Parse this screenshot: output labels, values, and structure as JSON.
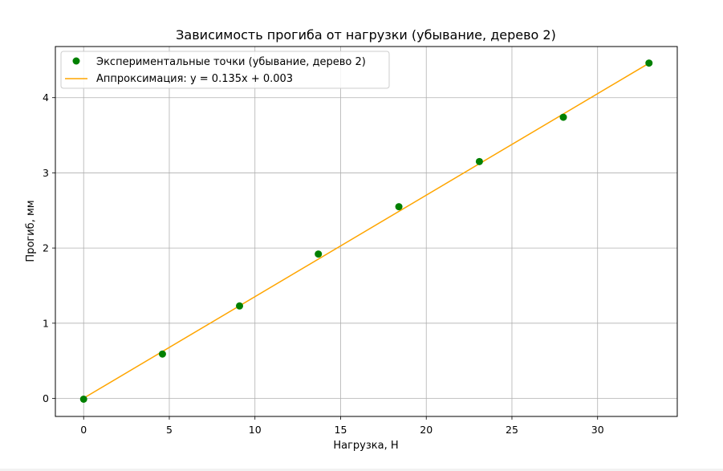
{
  "chart_data": {
    "type": "scatter",
    "title": "Зависимость прогиба от нагрузки (убывание, дерево 2)",
    "xlabel": "Нагрузка, Н",
    "ylabel": "Прогиб, мм",
    "xlim": [
      -1.65,
      34.65
    ],
    "ylim": [
      -0.24,
      4.68
    ],
    "x_ticks": [
      0,
      5,
      10,
      15,
      20,
      25,
      30
    ],
    "y_ticks": [
      0,
      1,
      2,
      3,
      4
    ],
    "grid": true,
    "legend_position": "top-left",
    "series": [
      {
        "name": "Экспериментальные точки (убывание, дерево 2)",
        "kind": "scatter",
        "color": "#008000",
        "x": [
          0,
          4.6,
          9.1,
          13.7,
          18.4,
          23.1,
          28.0,
          33.0
        ],
        "y": [
          -0.01,
          0.59,
          1.23,
          1.92,
          2.55,
          3.15,
          3.74,
          4.46
        ]
      },
      {
        "name": "Аппроксимация: y = 0.135x + 0.003",
        "kind": "line",
        "color": "#ffa500",
        "slope": 0.135,
        "intercept": 0.003,
        "x": [
          0,
          33.0
        ]
      }
    ]
  }
}
